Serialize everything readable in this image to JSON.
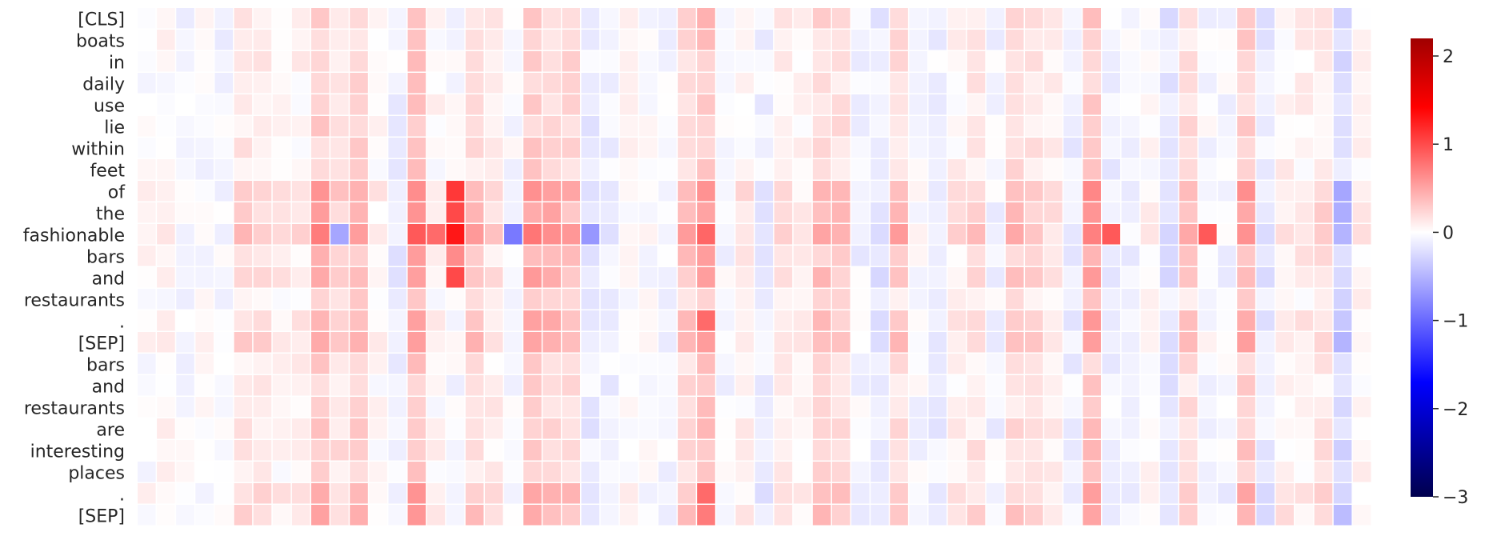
{
  "chart_data": {
    "type": "heatmap",
    "title": "",
    "xlabel": "",
    "ylabel": "",
    "rows": [
      "[CLS]",
      "boats",
      "in",
      "daily",
      "use",
      "lie",
      "within",
      "feet",
      "of",
      "the",
      "fashionable",
      "bars",
      "and",
      "restaurants",
      ".",
      "[SEP]",
      "bars",
      "and",
      "restaurants",
      "are",
      "interesting",
      "places",
      ".",
      "[SEP]"
    ],
    "num_columns": 64,
    "colormap": "seismic",
    "colormap_colors": [
      "#00004d",
      "#0000ff",
      "#ffffff",
      "#ff0000",
      "#800000"
    ],
    "vmin": -3,
    "vmax": 2.2,
    "colorbar_ticks": [
      2,
      1,
      0,
      -1,
      -2,
      -3
    ],
    "colorbar_tick_labels": [
      "2",
      "1",
      "0",
      "−1",
      "−2",
      "−3"
    ],
    "column_bias": [
      0.02,
      0.05,
      -0.05,
      -0.03,
      -0.08,
      0.2,
      0.2,
      0.1,
      0.1,
      0.45,
      0.25,
      0.4,
      0.05,
      -0.15,
      0.55,
      0.05,
      -0.05,
      0.3,
      0.15,
      -0.05,
      0.5,
      0.4,
      0.35,
      -0.2,
      -0.15,
      0.02,
      -0.05,
      -0.1,
      0.35,
      0.55,
      -0.08,
      0.1,
      -0.15,
      0.15,
      0.05,
      0.35,
      0.3,
      -0.1,
      -0.2,
      0.3,
      -0.05,
      -0.15,
      0.1,
      0.2,
      -0.1,
      0.3,
      0.25,
      0.1,
      -0.15,
      0.5,
      -0.15,
      -0.1,
      0.05,
      -0.25,
      0.3,
      -0.05,
      -0.1,
      0.45,
      -0.2,
      0.1,
      0.1,
      0.2,
      -0.35,
      0.05
    ],
    "row_bias": [
      0.0,
      0.0,
      0.0,
      0.0,
      0.0,
      0.0,
      0.0,
      0.0,
      0.2,
      0.1,
      0.25,
      0.05,
      0.1,
      0.0,
      0.1,
      0.15,
      0.0,
      0.0,
      0.0,
      0.0,
      0.0,
      0.0,
      0.05,
      0.1
    ],
    "row_scale": [
      0.7,
      0.6,
      0.6,
      0.6,
      0.6,
      0.6,
      0.6,
      0.6,
      1.2,
      1.1,
      1.5,
      0.9,
      1.0,
      0.6,
      1.0,
      1.1,
      0.6,
      0.6,
      0.6,
      0.7,
      0.7,
      0.6,
      1.0,
      1.0
    ],
    "strong_cells": [
      {
        "row": 8,
        "col": 16,
        "value": 1.2
      },
      {
        "row": 9,
        "col": 16,
        "value": 1.1
      },
      {
        "row": 10,
        "col": 16,
        "value": 1.4
      },
      {
        "row": 10,
        "col": 15,
        "value": 0.9
      },
      {
        "row": 10,
        "col": 14,
        "value": 1.0
      },
      {
        "row": 10,
        "col": 19,
        "value": -0.9
      },
      {
        "row": 10,
        "col": 23,
        "value": -0.7
      },
      {
        "row": 10,
        "col": 10,
        "value": -0.6
      },
      {
        "row": 10,
        "col": 50,
        "value": 1.0
      },
      {
        "row": 10,
        "col": 55,
        "value": 1.0
      },
      {
        "row": 12,
        "col": 16,
        "value": 1.1
      },
      {
        "row": 11,
        "col": 16,
        "value": 0.7
      },
      {
        "row": 14,
        "col": 29,
        "value": 0.9
      },
      {
        "row": 15,
        "col": 29,
        "value": 0.6
      },
      {
        "row": 22,
        "col": 29,
        "value": 0.9
      },
      {
        "row": 23,
        "col": 29,
        "value": 0.8
      },
      {
        "row": 8,
        "col": 62,
        "value": -0.6
      },
      {
        "row": 9,
        "col": 62,
        "value": -0.55
      },
      {
        "row": 10,
        "col": 62,
        "value": -0.5
      },
      {
        "row": 15,
        "col": 62,
        "value": -0.5
      },
      {
        "row": 23,
        "col": 62,
        "value": -0.45
      }
    ]
  }
}
